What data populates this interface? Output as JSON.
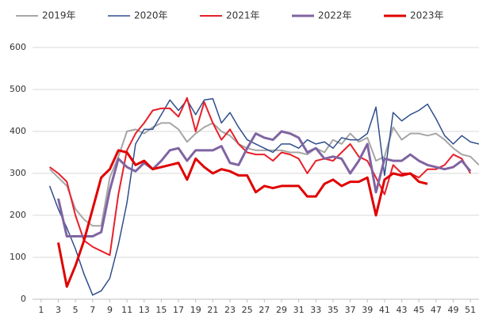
{
  "chart_data": {
    "type": "line",
    "x": [
      1,
      2,
      3,
      4,
      5,
      6,
      7,
      8,
      9,
      10,
      11,
      12,
      13,
      14,
      15,
      16,
      17,
      18,
      19,
      20,
      21,
      22,
      23,
      24,
      25,
      26,
      27,
      28,
      29,
      30,
      31,
      32,
      33,
      34,
      35,
      36,
      37,
      38,
      39,
      40,
      41,
      42,
      43,
      44,
      45,
      46,
      47,
      48,
      49,
      50,
      51,
      52
    ],
    "xlim": [
      0,
      52
    ],
    "xticks": [
      1,
      3,
      5,
      7,
      9,
      11,
      13,
      15,
      17,
      19,
      21,
      23,
      25,
      27,
      29,
      31,
      33,
      35,
      37,
      39,
      41,
      43,
      45,
      47,
      49,
      51
    ],
    "ylim": [
      0,
      600
    ],
    "yticks": [
      0,
      100,
      200,
      300,
      400,
      500,
      600
    ],
    "grid": true,
    "series": [
      {
        "name": "2019年",
        "color": "#a6a6a6",
        "width": 2,
        "values": [
          null,
          310,
          290,
          270,
          215,
          190,
          175,
          175,
          290,
          340,
          400,
          405,
          395,
          410,
          420,
          420,
          405,
          375,
          395,
          410,
          420,
          400,
          390,
          370,
          360,
          355,
          355,
          355,
          355,
          350,
          350,
          345,
          360,
          350,
          380,
          370,
          395,
          375,
          385,
          330,
          340,
          410,
          380,
          395,
          395,
          390,
          395,
          380,
          360,
          345,
          340,
          320
        ]
      },
      {
        "name": "2020年",
        "color": "#2f4e8c",
        "width": 1.5,
        "values": [
          null,
          270,
          215,
          170,
          120,
          60,
          10,
          20,
          50,
          130,
          230,
          370,
          405,
          405,
          440,
          475,
          450,
          475,
          440,
          475,
          478,
          420,
          445,
          410,
          380,
          370,
          360,
          350,
          370,
          370,
          360,
          380,
          370,
          375,
          360,
          385,
          380,
          380,
          395,
          458,
          295,
          445,
          425,
          440,
          450,
          465,
          430,
          390,
          370,
          390,
          375,
          370
        ]
      },
      {
        "name": "2021年",
        "color": "#e8202a",
        "width": 2,
        "values": [
          null,
          315,
          300,
          280,
          200,
          140,
          125,
          115,
          105,
          250,
          355,
          395,
          420,
          450,
          455,
          455,
          435,
          480,
          400,
          470,
          420,
          380,
          405,
          370,
          350,
          345,
          345,
          330,
          350,
          345,
          335,
          300,
          330,
          335,
          330,
          350,
          370,
          340,
          330,
          290,
          250,
          320,
          300,
          300,
          290,
          310,
          310,
          320,
          345,
          335,
          300,
          null
        ]
      },
      {
        "name": "2022年",
        "color": "#8064a2",
        "width": 3,
        "values": [
          null,
          null,
          240,
          150,
          150,
          150,
          150,
          160,
          260,
          335,
          315,
          305,
          325,
          310,
          330,
          355,
          360,
          330,
          355,
          355,
          355,
          365,
          325,
          320,
          360,
          395,
          385,
          380,
          400,
          395,
          385,
          350,
          360,
          335,
          340,
          335,
          300,
          330,
          370,
          255,
          335,
          330,
          330,
          345,
          330,
          320,
          315,
          310,
          315,
          330,
          305,
          null
        ]
      },
      {
        "name": "2023年",
        "color": "#e00000",
        "width": 3,
        "values": [
          null,
          null,
          135,
          30,
          80,
          140,
          215,
          290,
          310,
          355,
          350,
          320,
          330,
          310,
          315,
          320,
          325,
          285,
          335,
          315,
          300,
          310,
          305,
          295,
          295,
          255,
          270,
          265,
          270,
          270,
          270,
          245,
          245,
          275,
          285,
          270,
          280,
          280,
          290,
          200,
          285,
          300,
          295,
          300,
          280,
          275,
          null,
          null,
          null,
          null,
          null,
          null
        ]
      }
    ]
  }
}
